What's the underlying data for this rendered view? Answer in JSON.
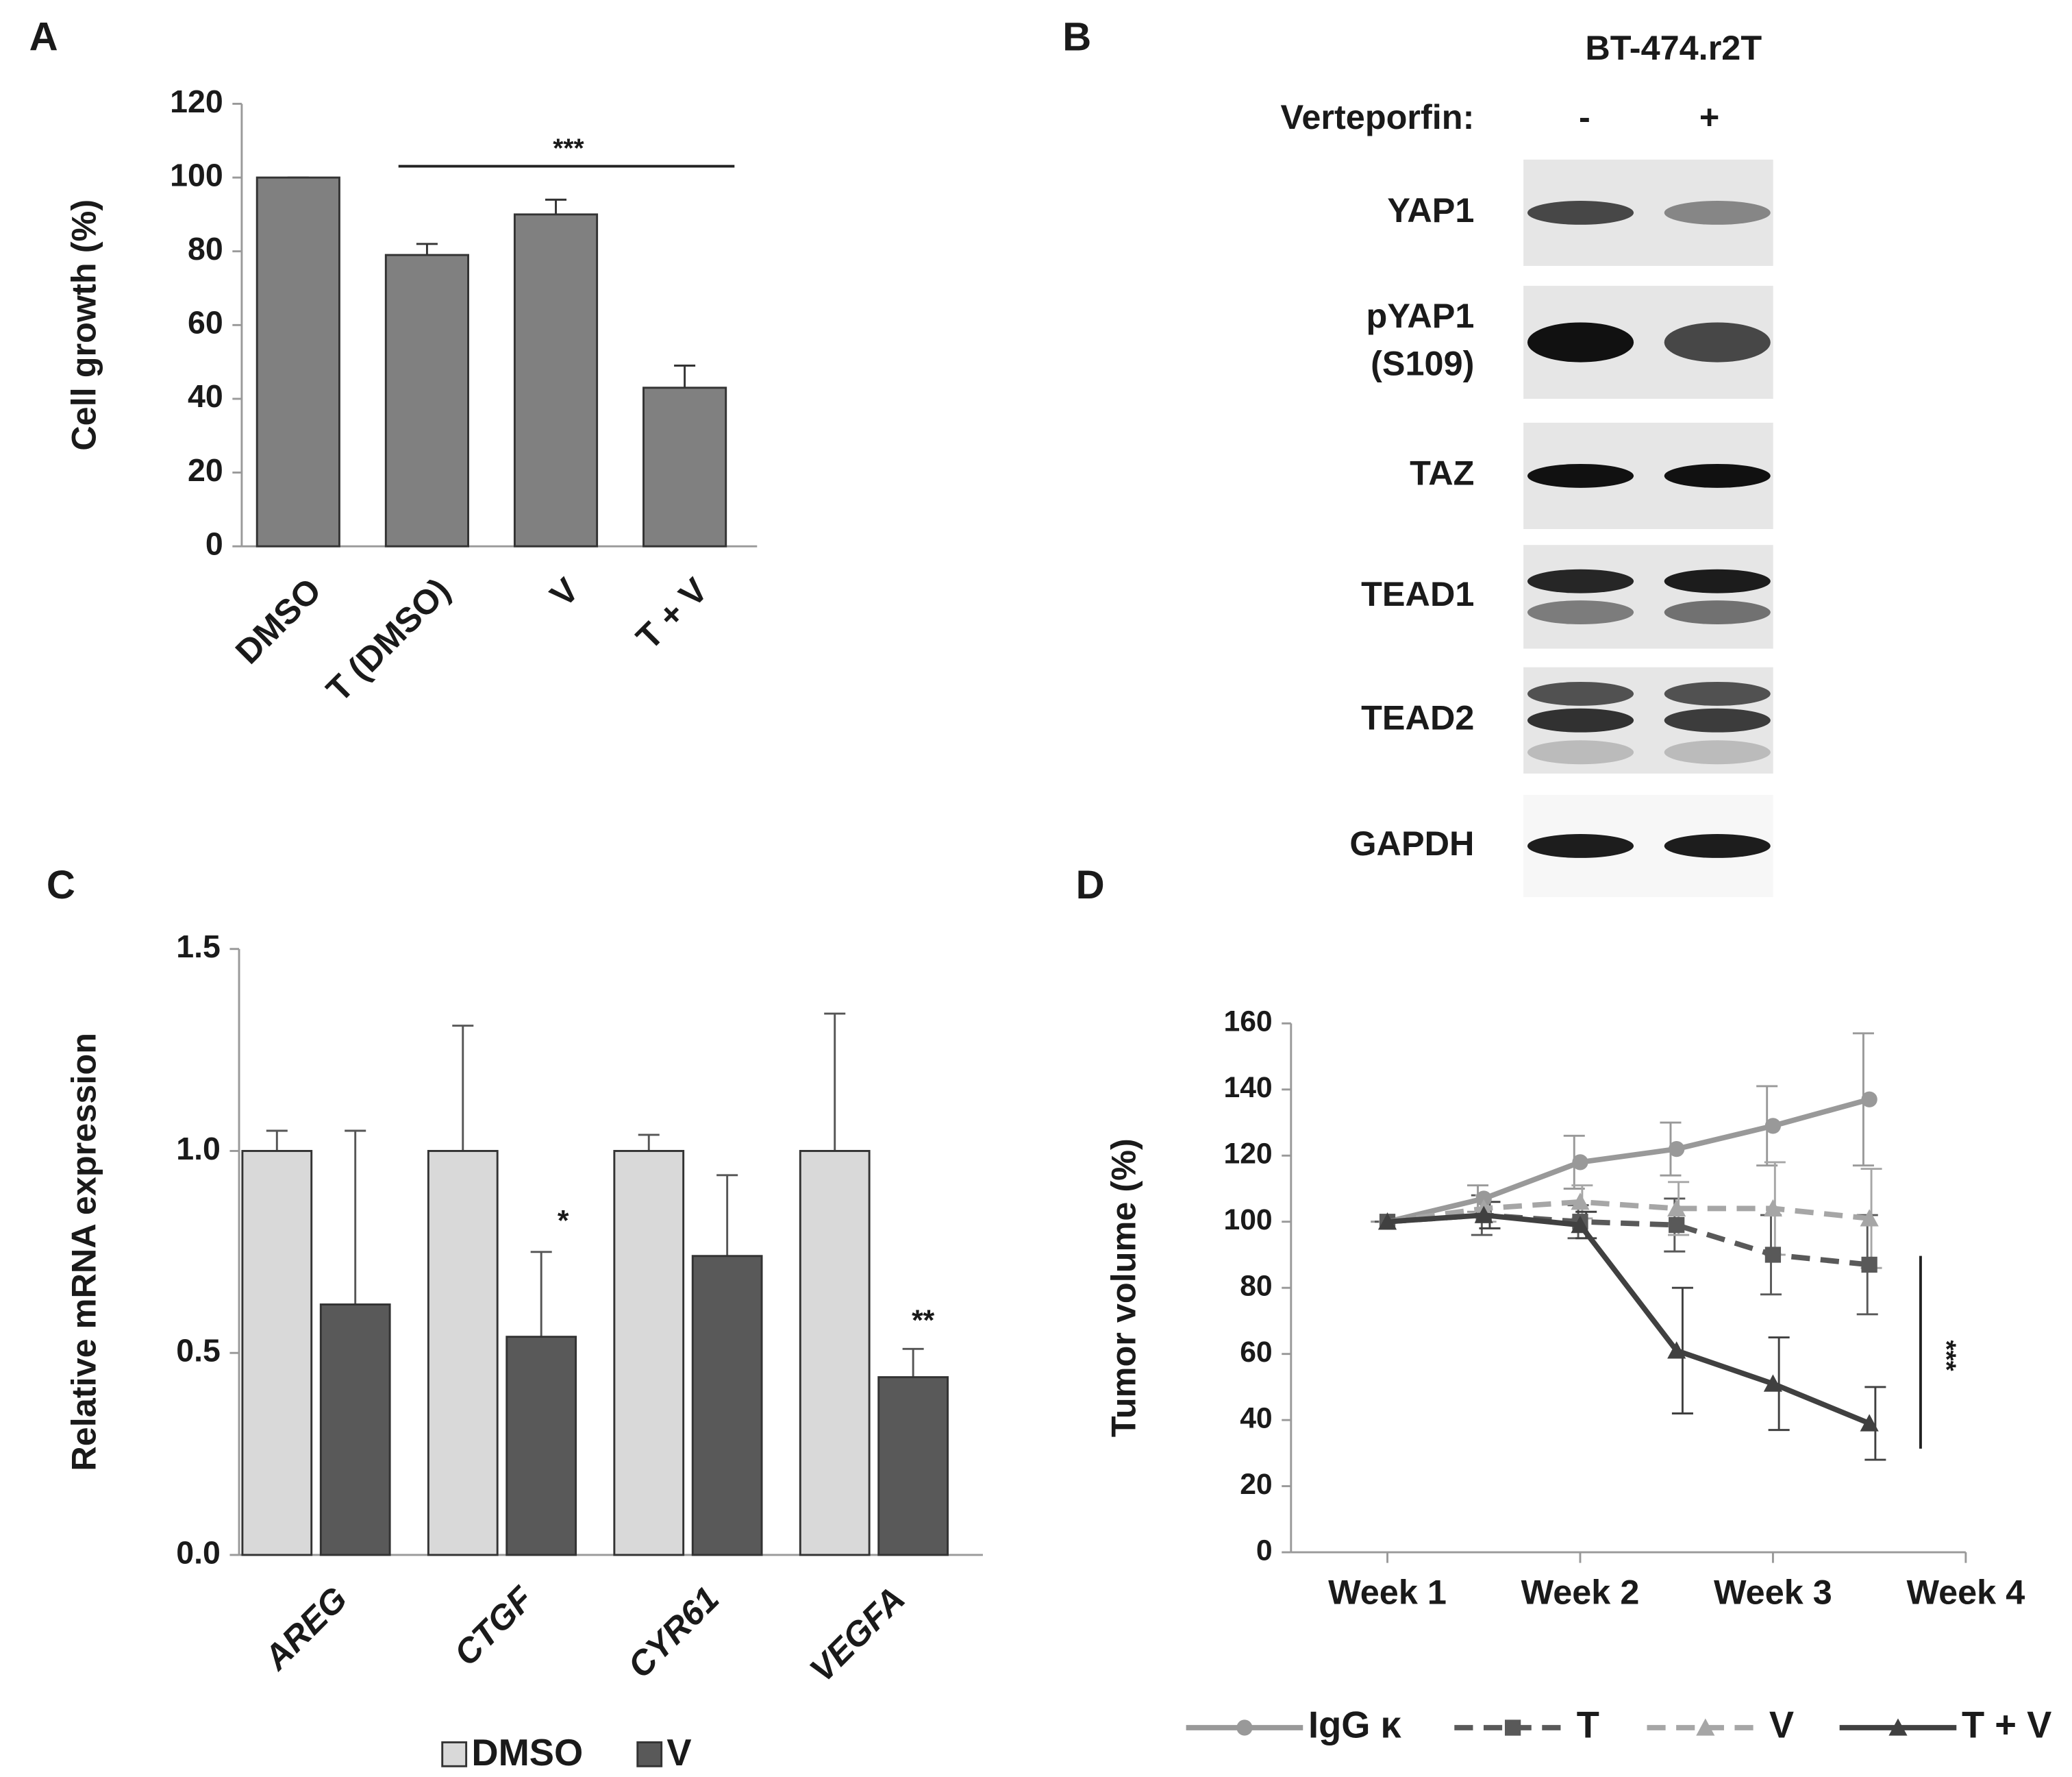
{
  "chart_data": [
    {
      "type": "bar",
      "panel": "A",
      "ylabel": "Cell growth (%)",
      "categories": [
        "DMSO",
        "T (DMSO)",
        "V",
        "T + V"
      ],
      "values": [
        100,
        79,
        90,
        43
      ],
      "errors": [
        0,
        3,
        4,
        6
      ],
      "color": "#808080",
      "ylim": [
        0,
        120
      ],
      "yticks": [
        0,
        20,
        40,
        60,
        80,
        100,
        120
      ],
      "annotations": [
        "***"
      ]
    },
    {
      "type": "grouped_bar",
      "panel": "C",
      "ylabel": "Relative mRNA expression",
      "categories": [
        "AREG",
        "CTGF",
        "CYR61",
        "VEGFA"
      ],
      "series": [
        {
          "name": "DMSO",
          "color": "#d9d9d9",
          "values": [
            1,
            1,
            1,
            1
          ],
          "errors": [
            0.05,
            0.31,
            0.04,
            0.34
          ]
        },
        {
          "name": "V",
          "color": "#595959",
          "values": [
            0.62,
            0.54,
            0.74,
            0.44
          ],
          "errors": [
            0.43,
            0.21,
            0.2,
            0.07
          ]
        }
      ],
      "ylim": [
        0,
        1.5
      ],
      "yticks": [
        {
          "value": 0,
          "label": "0.0"
        },
        0.5,
        {
          "value": 1,
          "label": "1.0"
        },
        1.5
      ],
      "annotations": [
        "*",
        "**"
      ]
    },
    {
      "type": "line",
      "panel": "D",
      "ylabel": "Tumor volume (%)",
      "x": [
        1,
        1.5,
        2,
        2.5,
        3,
        3.5
      ],
      "series": [
        {
          "name": "IgG κ",
          "color": "#999999",
          "marker": "circle",
          "dashed": false,
          "values": [
            100,
            107,
            118,
            122,
            129,
            137
          ],
          "errors": [
            0,
            4,
            8,
            8,
            12,
            20
          ]
        },
        {
          "name": "T",
          "color": "#595959",
          "marker": "square",
          "dashed": true,
          "values": [
            100,
            102,
            100,
            99,
            90,
            87
          ],
          "errors": [
            0,
            6,
            5,
            8,
            12,
            15
          ]
        },
        {
          "name": "V",
          "color": "#a6a6a6",
          "marker": "triangle",
          "dashed": true,
          "values": [
            100,
            104,
            106,
            104,
            104,
            101
          ],
          "errors": [
            0,
            4,
            5,
            8,
            14,
            15
          ]
        },
        {
          "name": "T + V",
          "color": "#404040",
          "marker": "triangle",
          "dashed": false,
          "values": [
            100,
            102,
            99,
            61,
            51,
            39
          ],
          "errors": [
            0,
            4,
            4,
            19,
            14,
            11
          ]
        }
      ],
      "xlim": [
        0.5,
        4
      ],
      "xticks": [
        {
          "value": 1,
          "label": "Week 1"
        },
        {
          "value": 2,
          "label": "Week 2"
        },
        {
          "value": 3,
          "label": "Week 3"
        },
        {
          "value": 4,
          "label": "Week 4"
        }
      ],
      "ylim": [
        0,
        160
      ],
      "yticks": [
        0,
        20,
        40,
        60,
        80,
        100,
        120,
        140,
        160
      ],
      "annotations": [
        "***"
      ]
    }
  ],
  "blot": {
    "panel": "B",
    "cell_line": "BT-474.r2T",
    "treatment": "Verteporfin:",
    "lanes": [
      "-",
      "+"
    ],
    "proteins": [
      [
        "YAP1"
      ],
      [
        "pYAP1",
        "(S109)"
      ],
      [
        "TAZ"
      ],
      [
        "TEAD1"
      ],
      [
        "TEAD2"
      ],
      [
        "GAPDH"
      ]
    ]
  }
}
